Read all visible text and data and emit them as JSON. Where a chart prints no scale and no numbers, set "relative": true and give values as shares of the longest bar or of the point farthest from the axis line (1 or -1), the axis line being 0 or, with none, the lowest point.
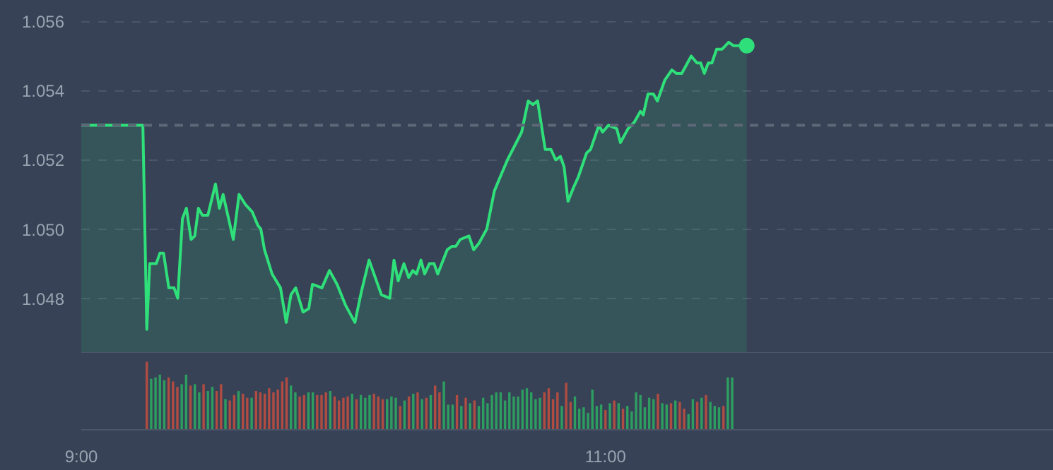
{
  "chart_data": [
    {
      "type": "area",
      "tick_labels": "y",
      "grid": "y",
      "xlim": [
        9,
        12.71
      ],
      "ylim": [
        1.0464,
        1.0566
      ],
      "yticks": [
        1.048,
        {
          "value": 1.05,
          "label": "1.050"
        },
        1.052,
        1.054,
        1.056
      ],
      "ref_lines": [
        {
          "axis": "y",
          "value": 1.053,
          "color": "#5d6777",
          "line_style": "dashed"
        }
      ],
      "x": [
        9.0,
        9.235,
        9.25,
        9.261,
        9.286,
        9.3,
        9.314,
        9.334,
        9.354,
        9.368,
        9.386,
        9.401,
        9.419,
        9.433,
        9.447,
        9.462,
        9.483,
        9.512,
        9.527,
        9.541,
        9.58,
        9.602,
        9.627,
        9.652,
        9.674,
        9.685,
        9.699,
        9.728,
        9.76,
        9.782,
        9.8,
        9.818,
        9.846,
        9.868,
        9.882,
        9.918,
        9.947,
        9.976,
        10.008,
        10.044,
        10.069,
        10.098,
        10.145,
        10.177,
        10.193,
        10.209,
        10.231,
        10.249,
        10.265,
        10.279,
        10.296,
        10.31,
        10.328,
        10.346,
        10.36,
        10.396,
        10.414,
        10.429,
        10.446,
        10.479,
        10.497,
        10.518,
        10.547,
        10.576,
        10.598,
        10.626,
        10.68,
        10.705,
        10.723,
        10.741,
        10.77,
        10.792,
        10.81,
        10.828,
        10.842,
        10.857,
        10.878,
        10.896,
        10.928,
        10.943,
        10.975,
        10.989,
        11.011,
        11.043,
        11.057,
        11.086,
        11.111,
        11.133,
        11.144,
        11.162,
        11.183,
        11.198,
        11.226,
        11.253,
        11.27,
        11.291,
        11.327,
        11.349,
        11.363,
        11.377,
        11.392,
        11.406,
        11.424,
        11.445,
        11.47,
        11.488,
        11.539
      ],
      "series": [
        {
          "color": "#2fe07a",
          "values": [
            1.053,
            1.053,
            1.0471,
            1.049,
            1.049,
            1.0493,
            1.0493,
            1.0483,
            1.0483,
            1.048,
            1.0503,
            1.0506,
            1.0497,
            1.0498,
            1.0506,
            1.0504,
            1.0504,
            1.0513,
            1.0506,
            1.051,
            1.0497,
            1.051,
            1.0507,
            1.0505,
            1.0501,
            1.05,
            1.0494,
            1.0487,
            1.0483,
            1.0473,
            1.0481,
            1.0483,
            1.0476,
            1.0477,
            1.0484,
            1.0483,
            1.0488,
            1.0484,
            1.0478,
            1.0473,
            1.0482,
            1.0491,
            1.0481,
            1.048,
            1.0491,
            1.0485,
            1.049,
            1.0486,
            1.0488,
            1.0487,
            1.0491,
            1.0487,
            1.049,
            1.049,
            1.0487,
            1.0494,
            1.0495,
            1.0495,
            1.0497,
            1.0498,
            1.0494,
            1.0496,
            1.05,
            1.0511,
            1.0515,
            1.052,
            1.0528,
            1.0537,
            1.0536,
            1.0537,
            1.0523,
            1.0523,
            1.052,
            1.0521,
            1.0518,
            1.0508,
            1.0512,
            1.0515,
            1.0522,
            1.0523,
            1.053,
            1.0528,
            1.053,
            1.0529,
            1.0525,
            1.0529,
            1.0531,
            1.0534,
            1.0533,
            1.0539,
            1.0539,
            1.0537,
            1.0543,
            1.0546,
            1.0545,
            1.0545,
            1.055,
            1.0548,
            1.0548,
            1.0545,
            1.0548,
            1.0548,
            1.0552,
            1.0552,
            1.0554,
            1.0553,
            1.0553
          ]
        },
        {
          "type": "scatter",
          "marker": "circle",
          "color": "#2fe07a",
          "x": [
            11.539
          ],
          "values": [
            1.0553
          ]
        }
      ]
    },
    {
      "type": "bar",
      "relative": true,
      "tick_labels": "x",
      "xlim": [
        9,
        12.71
      ],
      "xticks": [
        {
          "value": 9,
          "label": "9:00"
        },
        {
          "value": 11,
          "label": "11:00"
        }
      ],
      "x": [
        9.25,
        9.2667,
        9.2833,
        9.3,
        9.3167,
        9.3333,
        9.35,
        9.3667,
        9.3833,
        9.4,
        9.4167,
        9.4333,
        9.45,
        9.4667,
        9.4833,
        9.5,
        9.5167,
        9.5333,
        9.55,
        9.5667,
        9.5833,
        9.6,
        9.6167,
        9.6333,
        9.65,
        9.6667,
        9.6833,
        9.7,
        9.7167,
        9.7333,
        9.75,
        9.7667,
        9.7833,
        9.8,
        9.8167,
        9.8333,
        9.85,
        9.8667,
        9.8833,
        9.9,
        9.9167,
        9.9333,
        9.95,
        9.9667,
        9.9833,
        10.0,
        10.0167,
        10.0333,
        10.05,
        10.0667,
        10.0833,
        10.1,
        10.1167,
        10.1333,
        10.15,
        10.1667,
        10.1833,
        10.2,
        10.2167,
        10.2333,
        10.25,
        10.2667,
        10.2833,
        10.3,
        10.3167,
        10.3333,
        10.35,
        10.3667,
        10.3833,
        10.4,
        10.4167,
        10.4333,
        10.45,
        10.4667,
        10.4833,
        10.5,
        10.5167,
        10.5333,
        10.55,
        10.5667,
        10.5833,
        10.6,
        10.6167,
        10.6333,
        10.65,
        10.6667,
        10.6833,
        10.7,
        10.7167,
        10.7333,
        10.75,
        10.7667,
        10.7833,
        10.8,
        10.8167,
        10.8333,
        10.85,
        10.8667,
        10.8833,
        10.9,
        10.9167,
        10.9333,
        10.95,
        10.9667,
        10.9833,
        11.0,
        11.0167,
        11.0333,
        11.05,
        11.0667,
        11.0833,
        11.1,
        11.1167,
        11.1333,
        11.15,
        11.1667,
        11.1833,
        11.2,
        11.2167,
        11.2333,
        11.25,
        11.2667,
        11.2833,
        11.3,
        11.3167,
        11.3333,
        11.35,
        11.3667,
        11.3833,
        11.4,
        11.4167,
        11.4333,
        11.45,
        11.4667,
        11.4833
      ],
      "values": [
        1.0,
        0.75,
        0.77,
        0.81,
        0.73,
        0.77,
        0.71,
        0.63,
        0.67,
        0.81,
        0.65,
        0.67,
        0.55,
        0.67,
        0.57,
        0.63,
        0.57,
        0.67,
        0.45,
        0.43,
        0.51,
        0.57,
        0.53,
        0.47,
        0.47,
        0.57,
        0.55,
        0.53,
        0.61,
        0.55,
        0.59,
        0.71,
        0.77,
        0.65,
        0.55,
        0.49,
        0.51,
        0.55,
        0.55,
        0.51,
        0.51,
        0.55,
        0.57,
        0.49,
        0.43,
        0.47,
        0.49,
        0.53,
        0.45,
        0.51,
        0.47,
        0.51,
        0.53,
        0.49,
        0.45,
        0.45,
        0.49,
        0.47,
        0.35,
        0.43,
        0.49,
        0.53,
        0.55,
        0.45,
        0.47,
        0.51,
        0.65,
        0.55,
        0.71,
        0.37,
        0.37,
        0.51,
        0.35,
        0.47,
        0.39,
        0.43,
        0.35,
        0.47,
        0.39,
        0.51,
        0.55,
        0.55,
        0.43,
        0.55,
        0.49,
        0.49,
        0.59,
        0.61,
        0.55,
        0.45,
        0.47,
        0.55,
        0.61,
        0.45,
        0.55,
        0.35,
        0.69,
        0.41,
        0.49,
        0.31,
        0.33,
        0.25,
        0.59,
        0.35,
        0.37,
        0.29,
        0.39,
        0.43,
        0.39,
        0.31,
        0.35,
        0.27,
        0.55,
        0.51,
        0.33,
        0.47,
        0.45,
        0.53,
        0.39,
        0.37,
        0.39,
        0.43,
        0.41,
        0.31,
        0.23,
        0.45,
        0.41,
        0.47,
        0.51,
        0.41,
        0.35,
        0.33,
        0.35,
        0.77,
        0.77
      ],
      "colors": [
        "#b04c42",
        "#2e9e60",
        "#2e9e60",
        "#2e9e60",
        "#2e9e60",
        "#b04c42",
        "#b04c42",
        "#b04c42",
        "#2e9e60",
        "#2e9e60",
        "#b04c42",
        "#2e9e60",
        "#2e9e60",
        "#b04c42",
        "#2e9e60",
        "#2e9e60",
        "#b04c42",
        "#b04c42",
        "#2e9e60",
        "#b04c42",
        "#b04c42",
        "#2e9e60",
        "#b04c42",
        "#b04c42",
        "#2e9e60",
        "#b04c42",
        "#b04c42",
        "#b04c42",
        "#b04c42",
        "#b04c42",
        "#b04c42",
        "#b04c42",
        "#b04c42",
        "#2e9e60",
        "#2e9e60",
        "#b04c42",
        "#b04c42",
        "#2e9e60",
        "#2e9e60",
        "#b04c42",
        "#b04c42",
        "#b04c42",
        "#2e9e60",
        "#b04c42",
        "#b04c42",
        "#b04c42",
        "#b04c42",
        "#2e9e60",
        "#b04c42",
        "#2e9e60",
        "#2e9e60",
        "#2e9e60",
        "#b04c42",
        "#b04c42",
        "#b04c42",
        "#2e9e60",
        "#2e9e60",
        "#2e9e60",
        "#b04c42",
        "#2e9e60",
        "#b04c42",
        "#2e9e60",
        "#b04c42",
        "#2e9e60",
        "#b04c42",
        "#2e9e60",
        "#b04c42",
        "#b04c42",
        "#2e9e60",
        "#2e9e60",
        "#2e9e60",
        "#b04c42",
        "#2e9e60",
        "#b04c42",
        "#2e9e60",
        "#b04c42",
        "#2e9e60",
        "#2e9e60",
        "#2e9e60",
        "#2e9e60",
        "#2e9e60",
        "#2e9e60",
        "#2e9e60",
        "#2e9e60",
        "#2e9e60",
        "#2e9e60",
        "#2e9e60",
        "#2e9e60",
        "#2e9e60",
        "#2e9e60",
        "#2e9e60",
        "#b04c42",
        "#b04c42",
        "#b04c42",
        "#b04c42",
        "#2e9e60",
        "#b04c42",
        "#b04c42",
        "#2e9e60",
        "#2e9e60",
        "#2e9e60",
        "#2e9e60",
        "#2e9e60",
        "#2e9e60",
        "#2e9e60",
        "#b04c42",
        "#2e9e60",
        "#b04c42",
        "#2e9e60",
        "#b04c42",
        "#2e9e60",
        "#2e9e60",
        "#2e9e60",
        "#2e9e60",
        "#2e9e60",
        "#2e9e60",
        "#2e9e60",
        "#b04c42",
        "#2e9e60",
        "#2e9e60",
        "#b04c42",
        "#2e9e60",
        "#b04c42",
        "#b04c42",
        "#2e9e60",
        "#2e9e60",
        "#b04c42",
        "#2e9e60",
        "#b04c42",
        "#2e9e60",
        "#2e9e60",
        "#2e9e60",
        "#b04c42",
        "#2e9e60",
        "#2e9e60"
      ]
    }
  ]
}
